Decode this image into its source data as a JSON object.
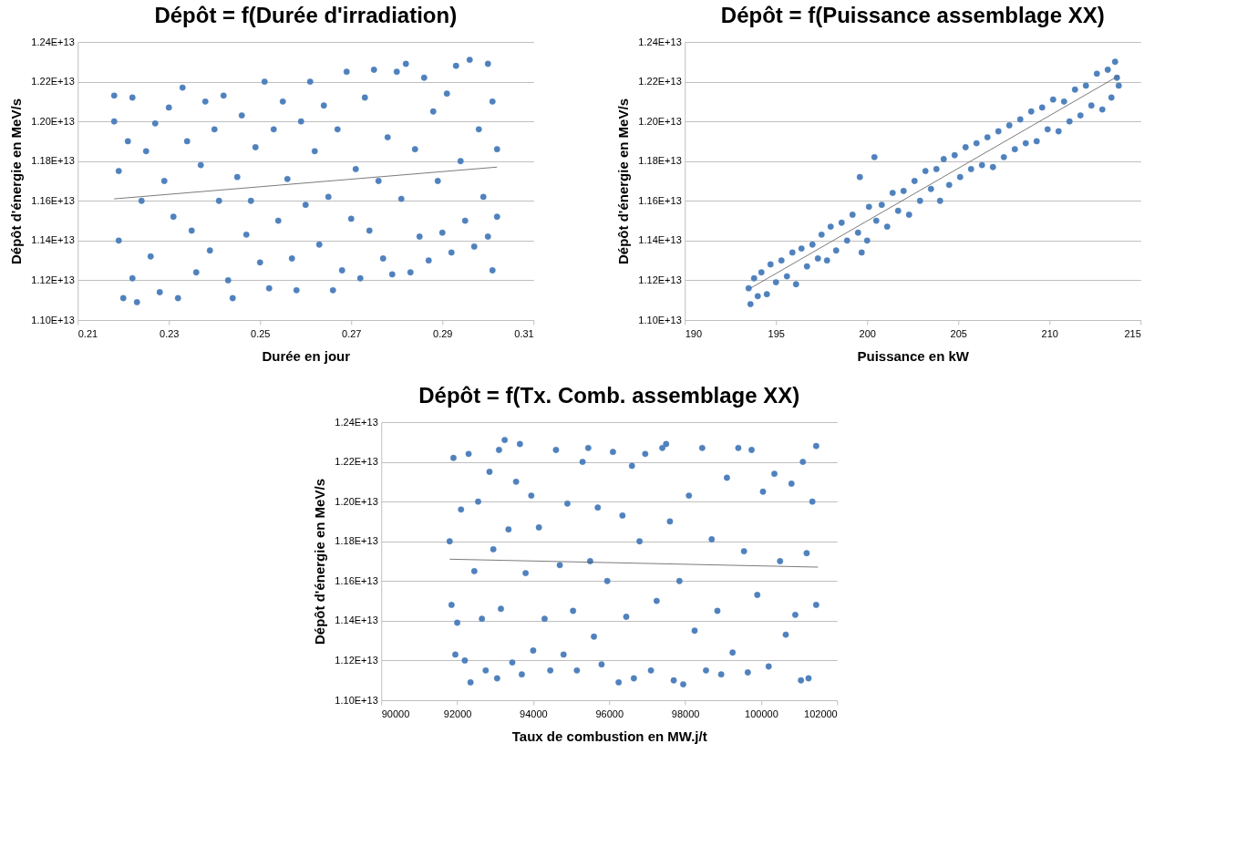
{
  "chart_data": [
    {
      "type": "scatter",
      "title": "Dépôt = f(Durée d'irradiation)",
      "xlabel": "Durée en jour",
      "ylabel": "Dépôt d'énergie en MeV/s",
      "xlim": [
        0.21,
        0.31
      ],
      "xticks": [
        0.21,
        0.23,
        0.25,
        0.27,
        0.29,
        0.31
      ],
      "ylim": [
        11000000000000.0,
        12400000000000.0
      ],
      "yticks": [
        {
          "value": 11000000000000.0,
          "label": "1.10E+13"
        },
        {
          "value": 11200000000000.0,
          "label": "1.12E+13"
        },
        {
          "value": 11400000000000.0,
          "label": "1.14E+13"
        },
        {
          "value": 11600000000000.0,
          "label": "1.16E+13"
        },
        {
          "value": 11800000000000.0,
          "label": "1.18E+13"
        },
        {
          "value": 12000000000000.0,
          "label": "1.20E+13"
        },
        {
          "value": 12200000000000.0,
          "label": "1.22E+13"
        },
        {
          "value": 12400000000000.0,
          "label": "1.24E+13"
        }
      ],
      "grid": "y",
      "series": [
        {
          "color": "#4f81bd",
          "marker": "circle",
          "x": [
            0.218,
            0.218,
            0.219,
            0.219,
            0.22,
            0.221,
            0.222,
            0.222,
            0.223,
            0.224,
            0.225,
            0.226,
            0.227,
            0.228,
            0.229,
            0.23,
            0.231,
            0.232,
            0.233,
            0.234,
            0.235,
            0.236,
            0.237,
            0.238,
            0.239,
            0.24,
            0.241,
            0.242,
            0.243,
            0.244,
            0.245,
            0.246,
            0.247,
            0.248,
            0.249,
            0.25,
            0.251,
            0.252,
            0.253,
            0.254,
            0.255,
            0.256,
            0.257,
            0.258,
            0.259,
            0.26,
            0.261,
            0.262,
            0.263,
            0.264,
            0.265,
            0.266,
            0.267,
            0.268,
            0.269,
            0.27,
            0.271,
            0.272,
            0.273,
            0.274,
            0.275,
            0.276,
            0.277,
            0.278,
            0.279,
            0.28,
            0.281,
            0.282,
            0.283,
            0.284,
            0.285,
            0.286,
            0.287,
            0.288,
            0.289,
            0.29,
            0.291,
            0.292,
            0.293,
            0.294,
            0.295,
            0.296,
            0.297,
            0.298,
            0.299,
            0.3,
            0.3,
            0.301,
            0.301,
            0.302,
            0.302
          ],
          "values": [
            12130000000000.0,
            12000000000000.0,
            11750000000000.0,
            11400000000000.0,
            11110000000000.0,
            11900000000000.0,
            11210000000000.0,
            12120000000000.0,
            11090000000000.0,
            11600000000000.0,
            11850000000000.0,
            11320000000000.0,
            11990000000000.0,
            11140000000000.0,
            11700000000000.0,
            12070000000000.0,
            11520000000000.0,
            11110000000000.0,
            12170000000000.0,
            11900000000000.0,
            11450000000000.0,
            11240000000000.0,
            11780000000000.0,
            12100000000000.0,
            11350000000000.0,
            11960000000000.0,
            11600000000000.0,
            12130000000000.0,
            11200000000000.0,
            11110000000000.0,
            11720000000000.0,
            12030000000000.0,
            11430000000000.0,
            11600000000000.0,
            11870000000000.0,
            11290000000000.0,
            12200000000000.0,
            11160000000000.0,
            11960000000000.0,
            11500000000000.0,
            12100000000000.0,
            11710000000000.0,
            11310000000000.0,
            11150000000000.0,
            12000000000000.0,
            11580000000000.0,
            12200000000000.0,
            11850000000000.0,
            11380000000000.0,
            12080000000000.0,
            11620000000000.0,
            11150000000000.0,
            11960000000000.0,
            11250000000000.0,
            12250000000000.0,
            11510000000000.0,
            11760000000000.0,
            11210000000000.0,
            12120000000000.0,
            11450000000000.0,
            12260000000000.0,
            11700000000000.0,
            11310000000000.0,
            11920000000000.0,
            11230000000000.0,
            12250000000000.0,
            11610000000000.0,
            12290000000000.0,
            11240000000000.0,
            11860000000000.0,
            11420000000000.0,
            12220000000000.0,
            11300000000000.0,
            12050000000000.0,
            11700000000000.0,
            11440000000000.0,
            12140000000000.0,
            11340000000000.0,
            12280000000000.0,
            11800000000000.0,
            11500000000000.0,
            12310000000000.0,
            11370000000000.0,
            11960000000000.0,
            11620000000000.0,
            12290000000000.0,
            11420000000000.0,
            11250000000000.0,
            12100000000000.0,
            11520000000000.0,
            11860000000000.0
          ]
        },
        {
          "type": "line",
          "color": "#595959",
          "x": [
            0.218,
            0.302
          ],
          "values": [
            11610000000000.0,
            11770000000000.0
          ]
        }
      ]
    },
    {
      "type": "scatter",
      "title": "Dépôt = f(Puissance assemblage XX)",
      "xlabel": "Puissance en kW",
      "ylabel": "Dépôt d'énergie en MeV/s",
      "xlim": [
        190,
        215
      ],
      "xticks": [
        190,
        195,
        200,
        205,
        210,
        215
      ],
      "ylim": [
        11000000000000.0,
        12400000000000.0
      ],
      "yticks": [
        {
          "value": 11000000000000.0,
          "label": "1.10E+13"
        },
        {
          "value": 11200000000000.0,
          "label": "1.12E+13"
        },
        {
          "value": 11400000000000.0,
          "label": "1.14E+13"
        },
        {
          "value": 11600000000000.0,
          "label": "1.16E+13"
        },
        {
          "value": 11800000000000.0,
          "label": "1.18E+13"
        },
        {
          "value": 12000000000000.0,
          "label": "1.20E+13"
        },
        {
          "value": 12200000000000.0,
          "label": "1.22E+13"
        },
        {
          "value": 12400000000000.0,
          "label": "1.24E+13"
        }
      ],
      "grid": "y",
      "series": [
        {
          "color": "#4f81bd",
          "marker": "circle",
          "x": [
            193.5,
            193.6,
            193.8,
            194.0,
            194.2,
            194.5,
            194.7,
            195.0,
            195.3,
            195.6,
            195.9,
            196.1,
            196.4,
            196.7,
            197.0,
            197.3,
            197.5,
            197.8,
            198.0,
            198.3,
            198.6,
            198.9,
            199.2,
            199.5,
            199.6,
            199.7,
            200.0,
            200.1,
            200.4,
            200.5,
            200.8,
            201.1,
            201.4,
            201.7,
            202.0,
            202.3,
            202.6,
            202.9,
            203.2,
            203.5,
            203.8,
            204.0,
            204.2,
            204.5,
            204.8,
            205.1,
            205.4,
            205.7,
            206.0,
            206.3,
            206.6,
            206.9,
            207.2,
            207.5,
            207.8,
            208.1,
            208.4,
            208.7,
            209.0,
            209.3,
            209.6,
            209.9,
            210.2,
            210.5,
            210.8,
            211.1,
            211.4,
            211.7,
            212.0,
            212.3,
            212.6,
            212.9,
            213.2,
            213.4,
            213.6,
            213.7,
            213.8
          ],
          "values": [
            11160000000000.0,
            11080000000000.0,
            11210000000000.0,
            11120000000000.0,
            11240000000000.0,
            11130000000000.0,
            11280000000000.0,
            11190000000000.0,
            11300000000000.0,
            11220000000000.0,
            11340000000000.0,
            11180000000000.0,
            11360000000000.0,
            11270000000000.0,
            11380000000000.0,
            11310000000000.0,
            11430000000000.0,
            11300000000000.0,
            11470000000000.0,
            11350000000000.0,
            11490000000000.0,
            11400000000000.0,
            11530000000000.0,
            11440000000000.0,
            11720000000000.0,
            11340000000000.0,
            11400000000000.0,
            11570000000000.0,
            11820000000000.0,
            11500000000000.0,
            11580000000000.0,
            11470000000000.0,
            11640000000000.0,
            11550000000000.0,
            11650000000000.0,
            11530000000000.0,
            11700000000000.0,
            11600000000000.0,
            11750000000000.0,
            11660000000000.0,
            11760000000000.0,
            11600000000000.0,
            11810000000000.0,
            11680000000000.0,
            11830000000000.0,
            11720000000000.0,
            11870000000000.0,
            11760000000000.0,
            11890000000000.0,
            11780000000000.0,
            11920000000000.0,
            11770000000000.0,
            11950000000000.0,
            11820000000000.0,
            11980000000000.0,
            11860000000000.0,
            12010000000000.0,
            11890000000000.0,
            12050000000000.0,
            11900000000000.0,
            12070000000000.0,
            11960000000000.0,
            12110000000000.0,
            11950000000000.0,
            12100000000000.0,
            12000000000000.0,
            12160000000000.0,
            12030000000000.0,
            12180000000000.0,
            12080000000000.0,
            12240000000000.0,
            12060000000000.0,
            12260000000000.0,
            12120000000000.0,
            12300000000000.0,
            12220000000000.0,
            12180000000000.0
          ]
        },
        {
          "type": "line",
          "color": "#595959",
          "x": [
            193.6,
            213.8
          ],
          "values": [
            11160000000000.0,
            12230000000000.0
          ]
        }
      ]
    },
    {
      "type": "scatter",
      "title": "Dépôt = f(Tx. Comb. assemblage XX)",
      "xlabel": "Taux de combustion en MW.j/t",
      "ylabel": "Dépôt d'énergie en MeV/s",
      "xlim": [
        90000,
        102000
      ],
      "xticks": [
        90000,
        92000,
        94000,
        96000,
        98000,
        100000,
        102000
      ],
      "ylim": [
        11000000000000.0,
        12400000000000.0
      ],
      "yticks": [
        {
          "value": 11000000000000.0,
          "label": "1.10E+13"
        },
        {
          "value": 11200000000000.0,
          "label": "1.12E+13"
        },
        {
          "value": 11400000000000.0,
          "label": "1.14E+13"
        },
        {
          "value": 11600000000000.0,
          "label": "1.16E+13"
        },
        {
          "value": 11800000000000.0,
          "label": "1.18E+13"
        },
        {
          "value": 12000000000000.0,
          "label": "1.20E+13"
        },
        {
          "value": 12200000000000.0,
          "label": "1.22E+13"
        },
        {
          "value": 12400000000000.0,
          "label": "1.24E+13"
        }
      ],
      "grid": "y",
      "series": [
        {
          "color": "#4f81bd",
          "marker": "circle",
          "x": [
            91800,
            91850,
            91900,
            91950,
            92000,
            92100,
            92200,
            92300,
            92350,
            92450,
            92550,
            92650,
            92750,
            92850,
            92950,
            93050,
            93100,
            93150,
            93250,
            93350,
            93450,
            93550,
            93650,
            93700,
            93800,
            93950,
            94000,
            94150,
            94300,
            94450,
            94600,
            94700,
            94800,
            94900,
            95050,
            95150,
            95300,
            95450,
            95500,
            95600,
            95700,
            95800,
            95950,
            96100,
            96250,
            96350,
            96450,
            96600,
            96650,
            96800,
            96950,
            97100,
            97250,
            97400,
            97500,
            97600,
            97700,
            97850,
            97950,
            98100,
            98250,
            98450,
            98550,
            98700,
            98850,
            98950,
            99100,
            99250,
            99400,
            99550,
            99650,
            99750,
            99900,
            100050,
            100200,
            100350,
            100500,
            100650,
            100800,
            100900,
            101050,
            101100,
            101200,
            101250,
            101350,
            101450,
            101450
          ],
          "values": [
            11800000000000.0,
            11480000000000.0,
            12220000000000.0,
            11230000000000.0,
            11390000000000.0,
            11960000000000.0,
            11200000000000.0,
            12240000000000.0,
            11090000000000.0,
            11650000000000.0,
            12000000000000.0,
            11410000000000.0,
            11150000000000.0,
            12150000000000.0,
            11760000000000.0,
            11110000000000.0,
            12260000000000.0,
            11460000000000.0,
            12310000000000.0,
            11860000000000.0,
            11190000000000.0,
            12100000000000.0,
            12290000000000.0,
            11130000000000.0,
            11640000000000.0,
            12030000000000.0,
            11250000000000.0,
            11870000000000.0,
            11410000000000.0,
            11150000000000.0,
            12260000000000.0,
            11680000000000.0,
            11230000000000.0,
            11990000000000.0,
            11450000000000.0,
            11150000000000.0,
            12200000000000.0,
            12270000000000.0,
            11700000000000.0,
            11320000000000.0,
            11970000000000.0,
            11180000000000.0,
            11600000000000.0,
            12250000000000.0,
            11090000000000.0,
            11930000000000.0,
            11420000000000.0,
            12180000000000.0,
            11110000000000.0,
            11800000000000.0,
            12240000000000.0,
            11150000000000.0,
            11500000000000.0,
            12270000000000.0,
            12290000000000.0,
            11900000000000.0,
            11100000000000.0,
            11600000000000.0,
            11080000000000.0,
            12030000000000.0,
            11350000000000.0,
            12270000000000.0,
            11150000000000.0,
            11810000000000.0,
            11450000000000.0,
            11130000000000.0,
            12120000000000.0,
            11240000000000.0,
            12270000000000.0,
            11750000000000.0,
            11140000000000.0,
            12260000000000.0,
            11530000000000.0,
            12050000000000.0,
            11170000000000.0,
            12140000000000.0,
            11700000000000.0,
            11330000000000.0,
            12090000000000.0,
            11430000000000.0,
            11100000000000.0,
            12200000000000.0,
            11740000000000.0,
            11110000000000.0,
            12000000000000.0,
            12280000000000.0,
            11480000000000.0
          ]
        },
        {
          "type": "line",
          "color": "#595959",
          "x": [
            91800,
            101500
          ],
          "values": [
            11710000000000.0,
            11670000000000.0
          ]
        }
      ]
    }
  ]
}
